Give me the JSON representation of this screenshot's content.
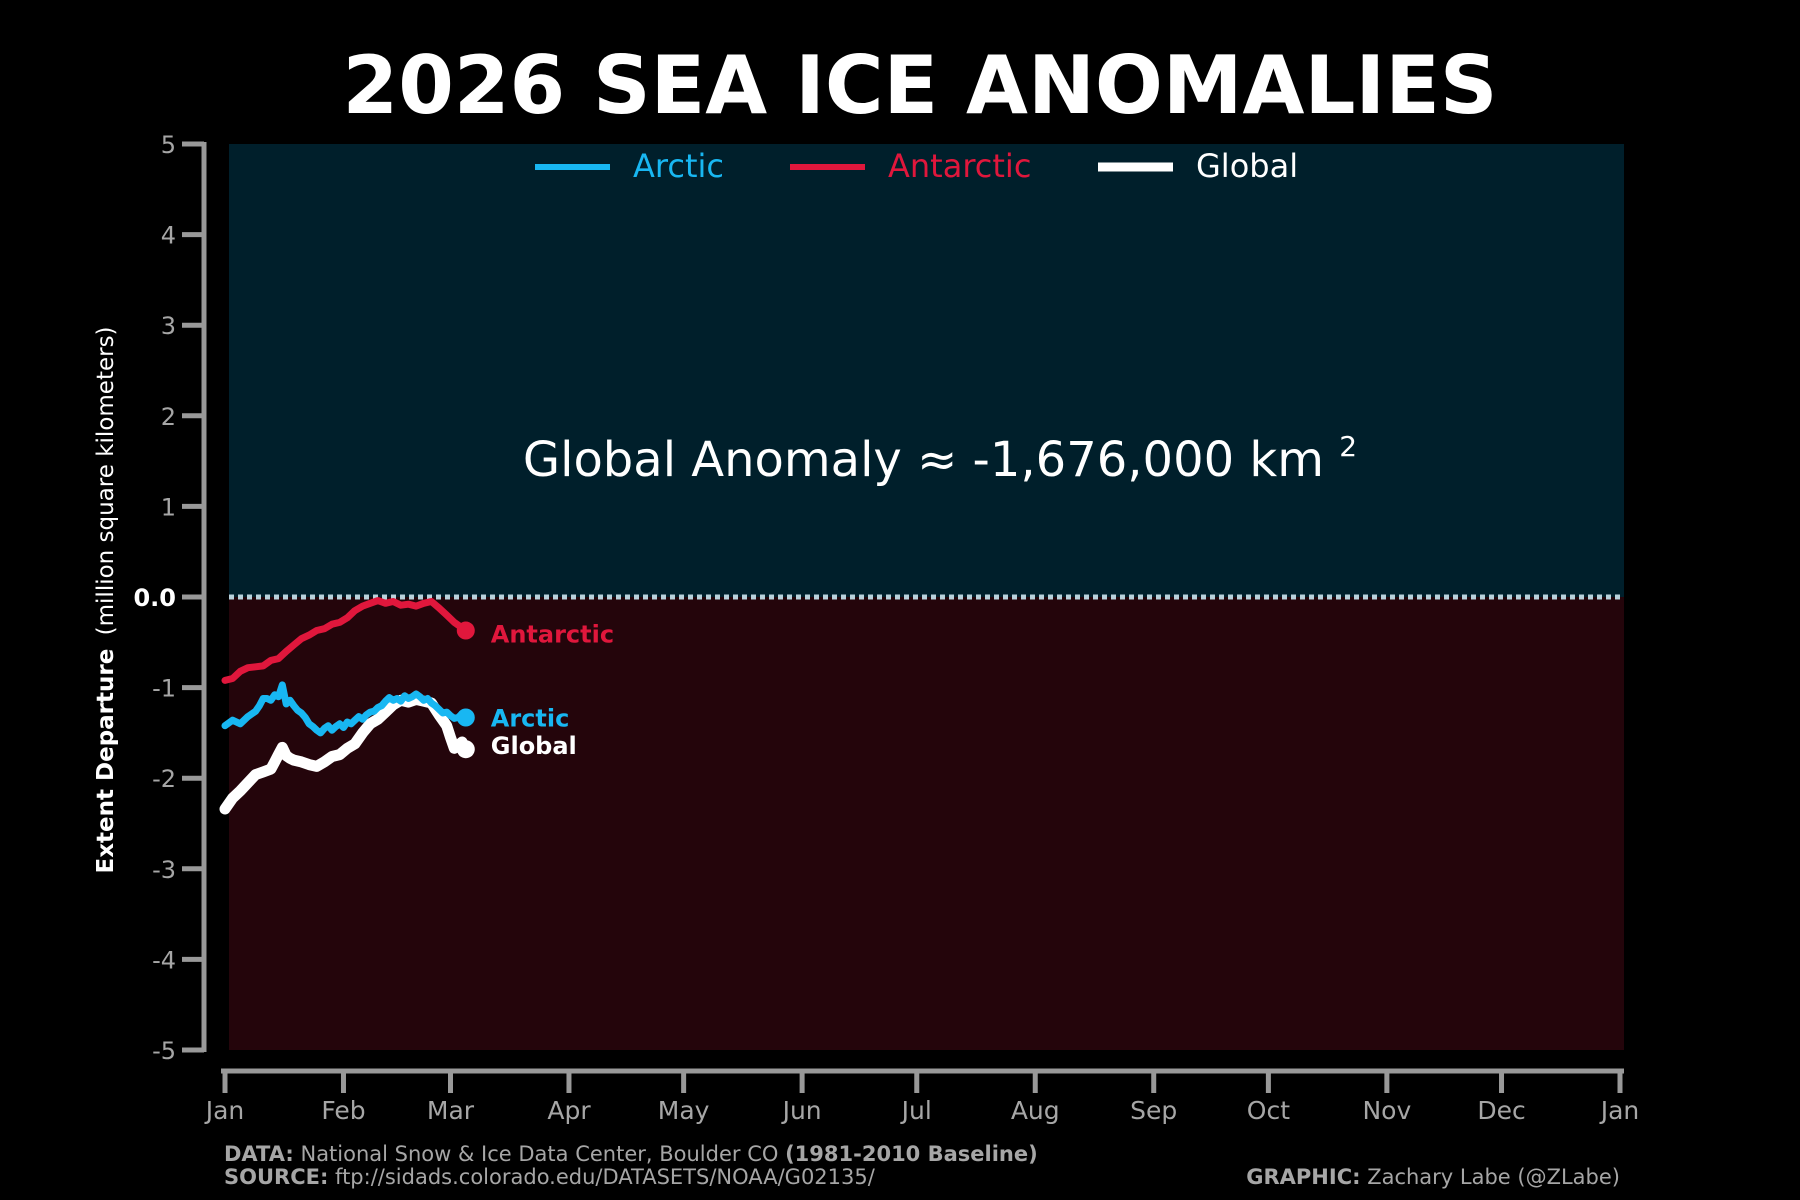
{
  "chart_data": {
    "type": "line",
    "title": "2026 SEA ICE ANOMALIES",
    "ylabel_bold": "Extent Departure",
    "ylabel_rest": "(million square kilometers)",
    "x_tick_labels": [
      "Jan",
      "Feb",
      "Mar",
      "Apr",
      "May",
      "Jun",
      "Jul",
      "Aug",
      "Sep",
      "Oct",
      "Nov",
      "Dec",
      "Jan"
    ],
    "y_ticks": [
      5,
      4,
      3,
      2,
      1,
      0,
      -1,
      -2,
      -3,
      -4,
      -5
    ],
    "y_tick_labels": [
      "5",
      "4",
      "3",
      "2",
      "1",
      "0.0",
      "-1",
      "-2",
      "-3",
      "-4",
      "-5"
    ],
    "ylim": [
      -5,
      5
    ],
    "xlim": [
      "2026-01-01",
      "2027-01-01"
    ],
    "grid": false,
    "legend_position": "top-center",
    "annotation": {
      "text": "Global Anomaly ≈ -1,676,000 km",
      "superscript": "2",
      "value_km2": -1676000
    },
    "series": [
      {
        "name": "Arctic",
        "color": "#18b7f2",
        "end_label": "Arctic",
        "points": [
          [
            "2026-01-01",
            -1.42
          ],
          [
            "2026-01-03",
            -1.36
          ],
          [
            "2026-01-05",
            -1.4
          ],
          [
            "2026-01-07",
            -1.32
          ],
          [
            "2026-01-09",
            -1.26
          ],
          [
            "2026-01-10",
            -1.2
          ],
          [
            "2026-01-11",
            -1.12
          ],
          [
            "2026-01-12",
            -1.12
          ],
          [
            "2026-01-13",
            -1.14
          ],
          [
            "2026-01-14",
            -1.08
          ],
          [
            "2026-01-15",
            -1.1
          ],
          [
            "2026-01-16",
            -0.97
          ],
          [
            "2026-01-17",
            -1.18
          ],
          [
            "2026-01-18",
            -1.14
          ],
          [
            "2026-01-19",
            -1.2
          ],
          [
            "2026-01-20",
            -1.25
          ],
          [
            "2026-01-21",
            -1.28
          ],
          [
            "2026-01-22",
            -1.33
          ],
          [
            "2026-01-23",
            -1.4
          ],
          [
            "2026-01-24",
            -1.43
          ],
          [
            "2026-01-25",
            -1.47
          ],
          [
            "2026-01-26",
            -1.5
          ],
          [
            "2026-01-27",
            -1.45
          ],
          [
            "2026-01-28",
            -1.42
          ],
          [
            "2026-01-29",
            -1.47
          ],
          [
            "2026-01-30",
            -1.43
          ],
          [
            "2026-01-31",
            -1.4
          ],
          [
            "2026-02-01",
            -1.44
          ],
          [
            "2026-02-02",
            -1.38
          ],
          [
            "2026-02-03",
            -1.4
          ],
          [
            "2026-02-04",
            -1.36
          ],
          [
            "2026-02-05",
            -1.32
          ],
          [
            "2026-02-06",
            -1.35
          ],
          [
            "2026-02-07",
            -1.3
          ],
          [
            "2026-02-08",
            -1.27
          ],
          [
            "2026-02-09",
            -1.26
          ],
          [
            "2026-02-10",
            -1.22
          ],
          [
            "2026-02-11",
            -1.2
          ],
          [
            "2026-02-12",
            -1.15
          ],
          [
            "2026-02-13",
            -1.11
          ],
          [
            "2026-02-14",
            -1.14
          ],
          [
            "2026-02-15",
            -1.12
          ],
          [
            "2026-02-16",
            -1.15
          ],
          [
            "2026-02-17",
            -1.09
          ],
          [
            "2026-02-18",
            -1.12
          ],
          [
            "2026-02-19",
            -1.1
          ],
          [
            "2026-02-20",
            -1.07
          ],
          [
            "2026-02-21",
            -1.1
          ],
          [
            "2026-02-22",
            -1.14
          ],
          [
            "2026-02-23",
            -1.12
          ],
          [
            "2026-02-24",
            -1.17
          ],
          [
            "2026-02-25",
            -1.2
          ],
          [
            "2026-02-26",
            -1.24
          ],
          [
            "2026-02-27",
            -1.28
          ],
          [
            "2026-02-28",
            -1.27
          ],
          [
            "2026-03-01",
            -1.31
          ],
          [
            "2026-03-02",
            -1.34
          ],
          [
            "2026-03-03",
            -1.33
          ],
          [
            "2026-03-04",
            -1.29
          ],
          [
            "2026-03-05",
            -1.33
          ]
        ]
      },
      {
        "name": "Antarctic",
        "color": "#e0173c",
        "end_label": "Antarctic",
        "points": [
          [
            "2026-01-01",
            -0.92
          ],
          [
            "2026-01-03",
            -0.9
          ],
          [
            "2026-01-05",
            -0.82
          ],
          [
            "2026-01-07",
            -0.78
          ],
          [
            "2026-01-09",
            -0.77
          ],
          [
            "2026-01-11",
            -0.76
          ],
          [
            "2026-01-13",
            -0.7
          ],
          [
            "2026-01-15",
            -0.68
          ],
          [
            "2026-01-17",
            -0.6
          ],
          [
            "2026-01-19",
            -0.53
          ],
          [
            "2026-01-21",
            -0.46
          ],
          [
            "2026-01-23",
            -0.42
          ],
          [
            "2026-01-25",
            -0.37
          ],
          [
            "2026-01-27",
            -0.35
          ],
          [
            "2026-01-29",
            -0.3
          ],
          [
            "2026-01-31",
            -0.28
          ],
          [
            "2026-02-02",
            -0.23
          ],
          [
            "2026-02-04",
            -0.15
          ],
          [
            "2026-02-06",
            -0.1
          ],
          [
            "2026-02-08",
            -0.07
          ],
          [
            "2026-02-10",
            -0.04
          ],
          [
            "2026-02-12",
            -0.07
          ],
          [
            "2026-02-14",
            -0.05
          ],
          [
            "2026-02-16",
            -0.09
          ],
          [
            "2026-02-18",
            -0.08
          ],
          [
            "2026-02-20",
            -0.1
          ],
          [
            "2026-02-22",
            -0.07
          ],
          [
            "2026-02-24",
            -0.05
          ],
          [
            "2026-02-26",
            -0.12
          ],
          [
            "2026-02-28",
            -0.2
          ],
          [
            "2026-03-02",
            -0.28
          ],
          [
            "2026-03-05",
            -0.37
          ]
        ]
      },
      {
        "name": "Global",
        "color": "#ffffff",
        "end_label": "Global",
        "points": [
          [
            "2026-01-01",
            -2.34
          ],
          [
            "2026-01-03",
            -2.22
          ],
          [
            "2026-01-05",
            -2.14
          ],
          [
            "2026-01-07",
            -2.05
          ],
          [
            "2026-01-09",
            -1.96
          ],
          [
            "2026-01-11",
            -1.93
          ],
          [
            "2026-01-13",
            -1.9
          ],
          [
            "2026-01-14",
            -1.82
          ],
          [
            "2026-01-15",
            -1.74
          ],
          [
            "2026-01-16",
            -1.66
          ],
          [
            "2026-01-17",
            -1.75
          ],
          [
            "2026-01-18",
            -1.78
          ],
          [
            "2026-01-19",
            -1.8
          ],
          [
            "2026-01-21",
            -1.82
          ],
          [
            "2026-01-23",
            -1.85
          ],
          [
            "2026-01-25",
            -1.87
          ],
          [
            "2026-01-27",
            -1.82
          ],
          [
            "2026-01-29",
            -1.76
          ],
          [
            "2026-01-31",
            -1.74
          ],
          [
            "2026-02-02",
            -1.67
          ],
          [
            "2026-02-04",
            -1.62
          ],
          [
            "2026-02-06",
            -1.5
          ],
          [
            "2026-02-08",
            -1.4
          ],
          [
            "2026-02-10",
            -1.35
          ],
          [
            "2026-02-12",
            -1.27
          ],
          [
            "2026-02-14",
            -1.19
          ],
          [
            "2026-02-16",
            -1.14
          ],
          [
            "2026-02-18",
            -1.16
          ],
          [
            "2026-02-20",
            -1.13
          ],
          [
            "2026-02-22",
            -1.15
          ],
          [
            "2026-02-24",
            -1.17
          ],
          [
            "2026-02-26",
            -1.3
          ],
          [
            "2026-02-28",
            -1.42
          ],
          [
            "2026-03-01",
            -1.55
          ],
          [
            "2026-03-02",
            -1.67
          ],
          [
            "2026-03-03",
            -1.64
          ],
          [
            "2026-03-04",
            -1.6
          ],
          [
            "2026-03-05",
            -1.68
          ]
        ]
      }
    ]
  },
  "colors": {
    "background": "#000000",
    "upper_panel": "#001f2b",
    "lower_panel": "#24050b",
    "axis": "#999999",
    "tick_text": "#a6a6a6",
    "zero_line": "#b9d2dc",
    "footer_text": "#a6a6a6"
  },
  "footer": {
    "data_label": "DATA:",
    "data_text": "National Snow & Ice Data Center, Boulder CO",
    "data_baseline": "(1981-2010 Baseline)",
    "source_label": "SOURCE:",
    "source_text": "ftp://sidads.colorado.edu/DATASETS/NOAA/G02135/",
    "graphic_label": "GRAPHIC:",
    "graphic_text": "Zachary Labe (@ZLabe)"
  }
}
